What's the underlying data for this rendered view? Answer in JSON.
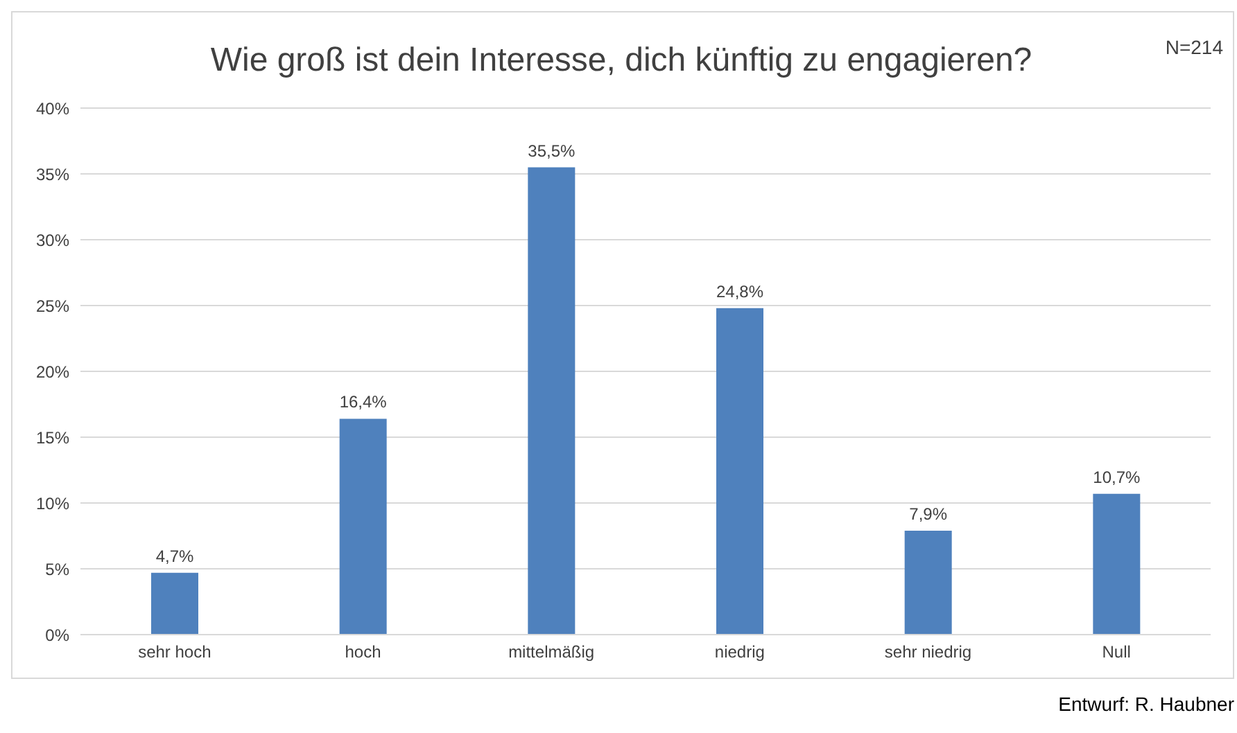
{
  "chart_data": {
    "type": "bar",
    "title": "Wie groß ist dein Interesse, dich künftig zu engagieren?",
    "categories": [
      "sehr hoch",
      "hoch",
      "mittelmäßig",
      "niedrig",
      "sehr niedrig",
      "Null"
    ],
    "values": [
      4.7,
      16.4,
      35.5,
      24.8,
      7.9,
      10.7
    ],
    "value_labels": [
      "4,7%",
      "16,4%",
      "35,5%",
      "24,8%",
      "7,9%",
      "10,7%"
    ],
    "color": "#4f81bd",
    "ylim": [
      0,
      40
    ],
    "yticks": [
      {
        "value": 0,
        "label": "0%"
      },
      {
        "value": 5,
        "label": "5%"
      },
      {
        "value": 10,
        "label": "10%"
      },
      {
        "value": 15,
        "label": "15%"
      },
      {
        "value": 20,
        "label": "20%"
      },
      {
        "value": 25,
        "label": "25%"
      },
      {
        "value": 30,
        "label": "30%"
      },
      {
        "value": 35,
        "label": "35%"
      },
      {
        "value": 40,
        "label": "40%"
      }
    ],
    "grid": "y",
    "annotations": [
      "N=214",
      "Entwurf: R. Haubner"
    ]
  }
}
